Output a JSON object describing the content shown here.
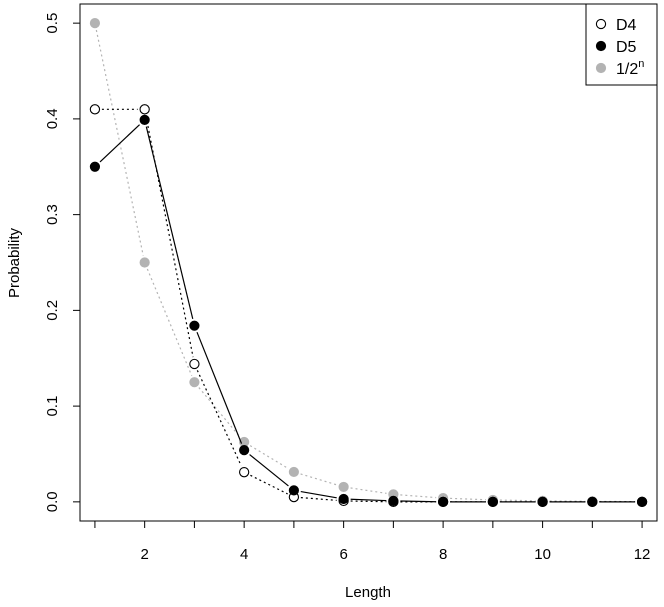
{
  "chart_data": {
    "type": "line",
    "title": "",
    "xlabel": "Length",
    "ylabel": "Probability",
    "xlim": [
      0.7,
      12.3
    ],
    "ylim": [
      -0.02,
      0.52
    ],
    "x_ticks": [
      2,
      4,
      6,
      8,
      10,
      12
    ],
    "y_ticks": [
      0.0,
      0.1,
      0.2,
      0.3,
      0.4,
      0.5
    ],
    "x_tick_labels": [
      "2",
      "4",
      "6",
      "8",
      "10",
      "12"
    ],
    "y_tick_labels": [
      "0.0",
      "0.1",
      "0.2",
      "0.3",
      "0.4",
      "0.5"
    ],
    "legend_position": "top-right",
    "legend_power_label": "n",
    "series": [
      {
        "name": "D4",
        "marker": "open-circle",
        "line_style": "dotted",
        "color": "#000000",
        "x": [
          1,
          2,
          3,
          4,
          5,
          6,
          7,
          8,
          9,
          10,
          11,
          12
        ],
        "y": [
          0.41,
          0.41,
          0.144,
          0.031,
          0.005,
          0.001,
          0.0,
          0.0,
          0.0,
          0.0,
          0.0,
          0.0
        ]
      },
      {
        "name": "D5",
        "marker": "filled-circle",
        "line_style": "solid",
        "color": "#000000",
        "x": [
          1,
          2,
          3,
          4,
          5,
          6,
          7,
          8,
          9,
          10,
          11,
          12
        ],
        "y": [
          0.35,
          0.399,
          0.184,
          0.054,
          0.012,
          0.003,
          0.001,
          0.0,
          0.0,
          0.0,
          0.0,
          0.0
        ]
      },
      {
        "name": "1/2",
        "marker": "filled-circle",
        "line_style": "dotted",
        "color": "#b3b3b3",
        "x": [
          1,
          2,
          3,
          4,
          5,
          6,
          7,
          8,
          9,
          10,
          11,
          12
        ],
        "y": [
          0.5,
          0.25,
          0.125,
          0.0625,
          0.03125,
          0.0156,
          0.0078,
          0.0039,
          0.002,
          0.001,
          0.0005,
          0.0002
        ]
      }
    ]
  }
}
